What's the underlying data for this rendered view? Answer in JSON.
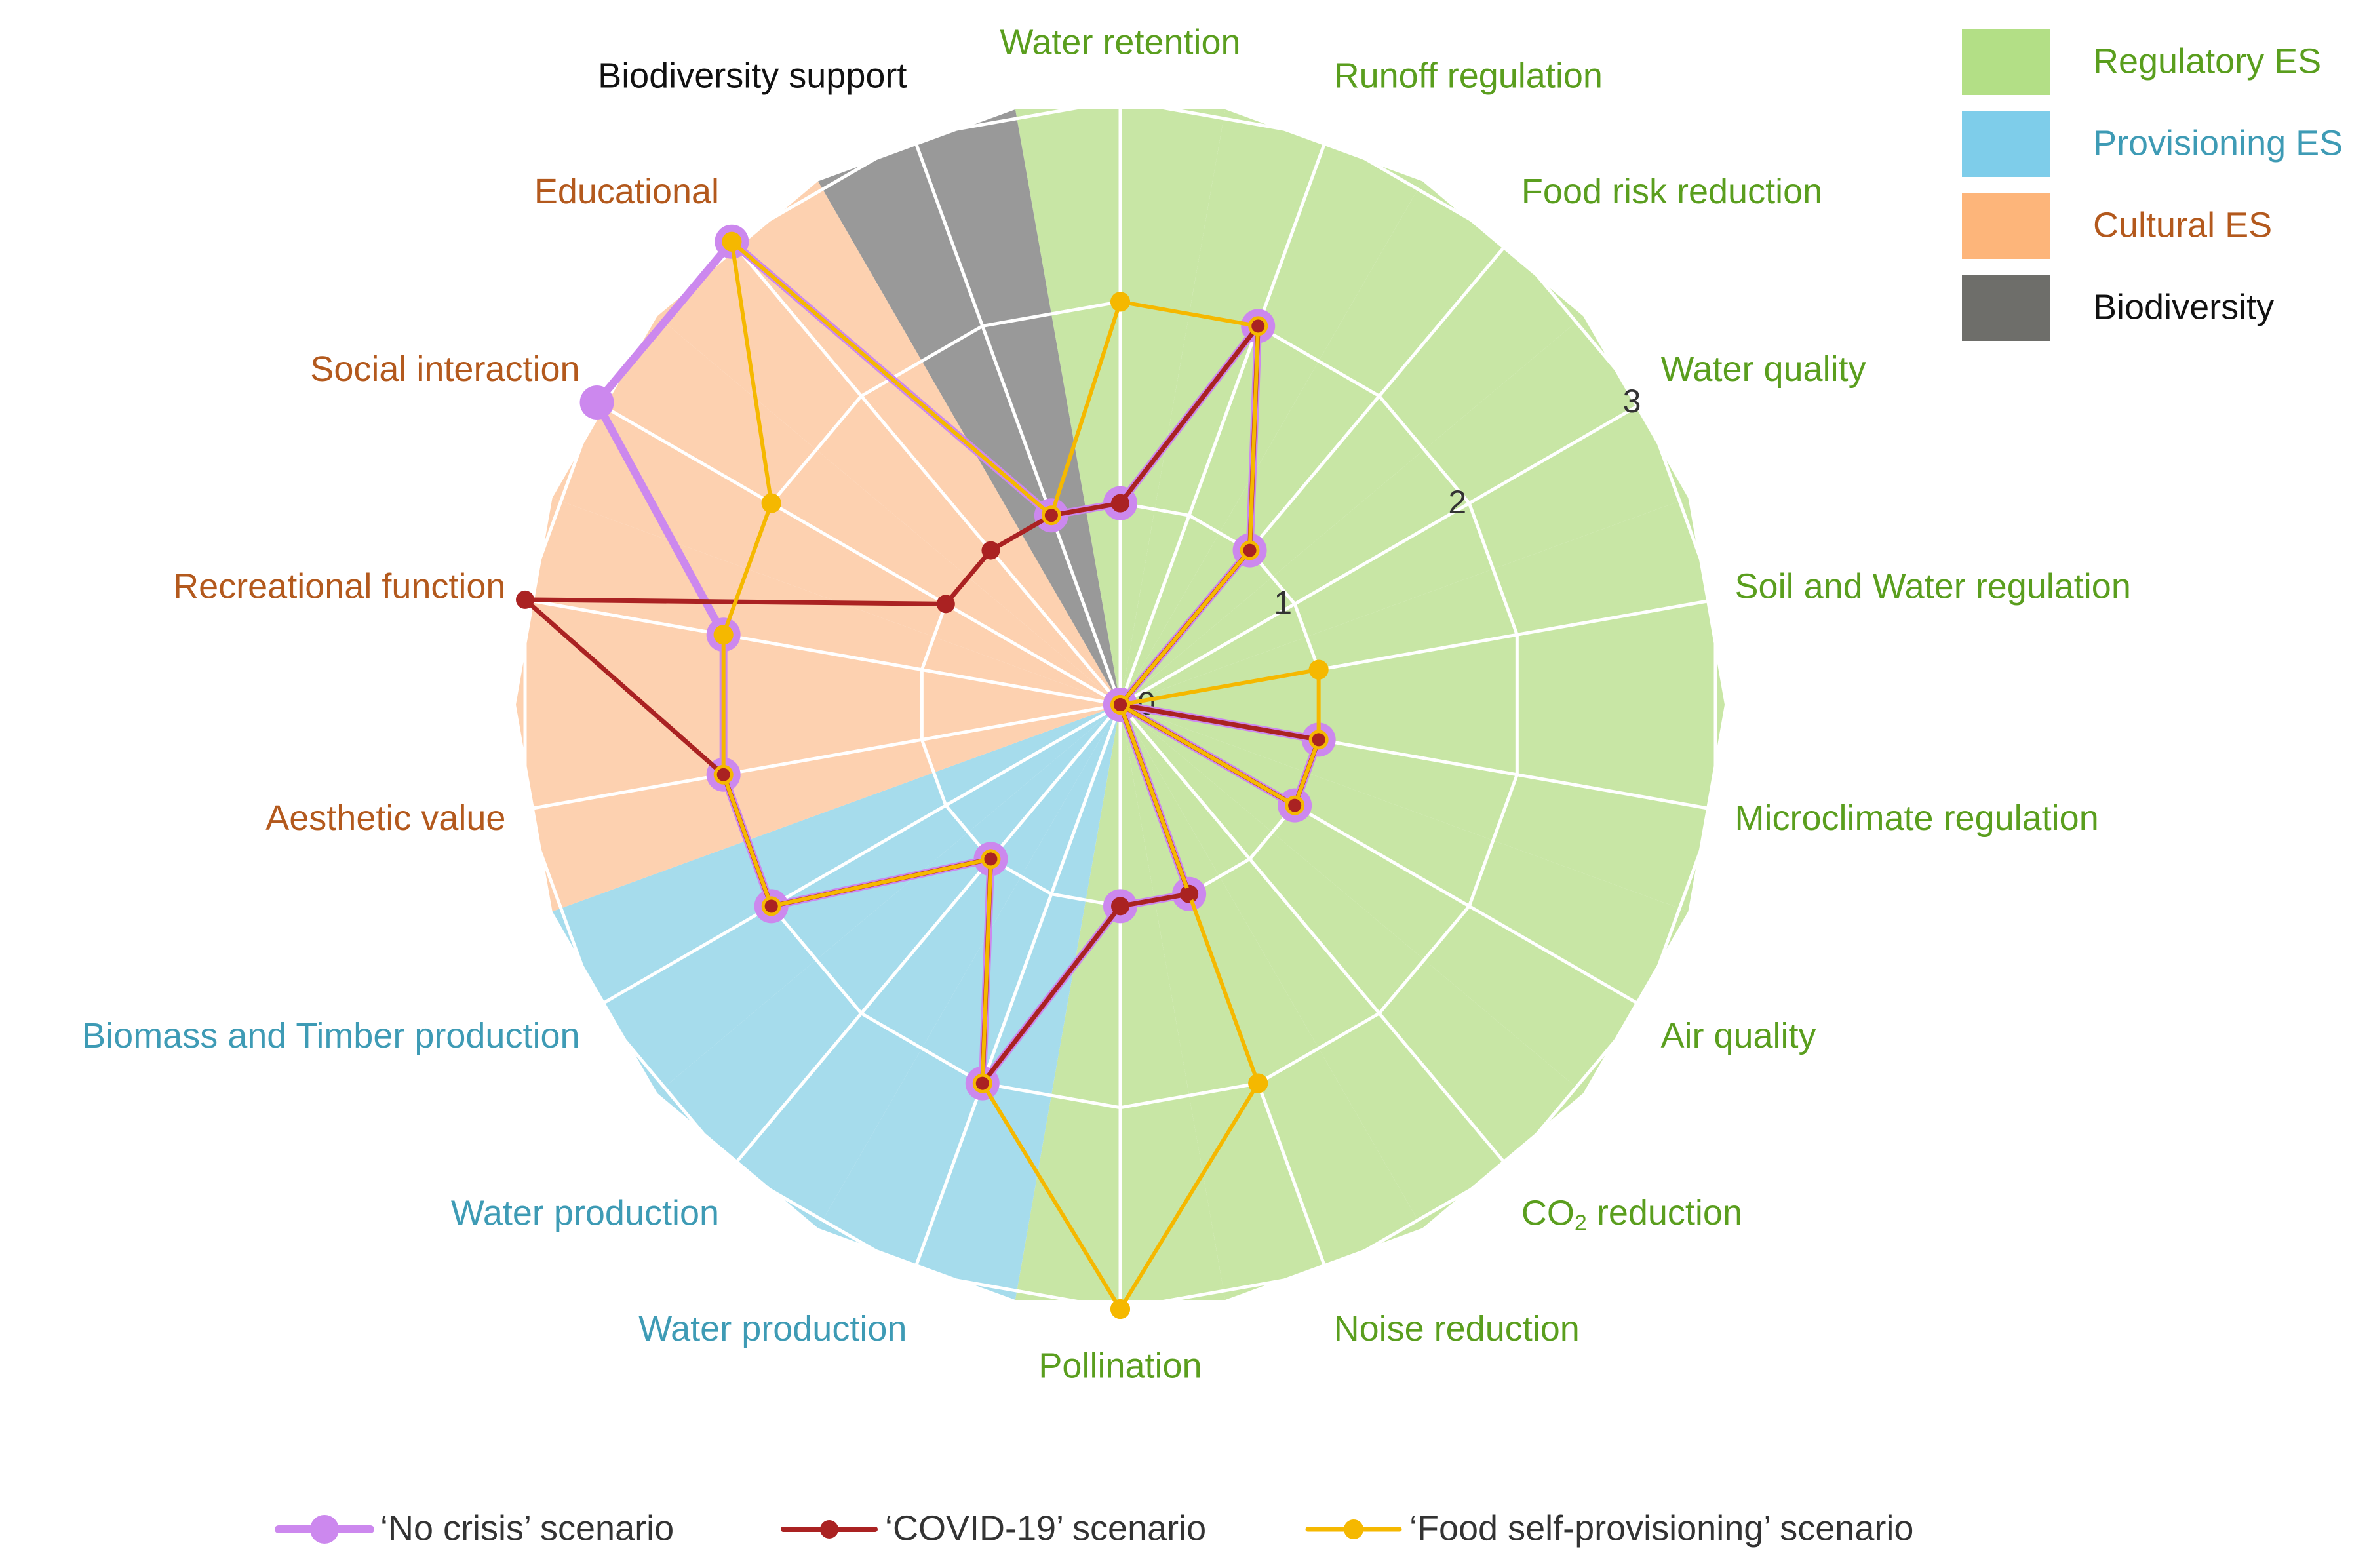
{
  "chart_data": {
    "type": "radar",
    "title": "",
    "axis_range": [
      0,
      3
    ],
    "ticks": [
      "0",
      "1",
      "2",
      "3"
    ],
    "grid": true,
    "categories": [
      {
        "label": "Water retention",
        "group": "regulatory"
      },
      {
        "label": "Runoff regulation",
        "group": "regulatory"
      },
      {
        "label": "Food risk reduction",
        "group": "regulatory"
      },
      {
        "label": "Water quality",
        "group": "regulatory"
      },
      {
        "label": "Soil and Water regulation",
        "group": "regulatory"
      },
      {
        "label": "Microclimate regulation",
        "group": "regulatory"
      },
      {
        "label": "Air quality",
        "group": "regulatory"
      },
      {
        "label": "CO",
        "label_sub": "2",
        "label_suffix": " reduction",
        "group": "regulatory"
      },
      {
        "label": "Noise reduction",
        "group": "regulatory"
      },
      {
        "label": "Pollination",
        "group": "regulatory"
      },
      {
        "label": "Water production",
        "group": "provisioning"
      },
      {
        "label": "Water production",
        "group": "provisioning"
      },
      {
        "label": "Biomass and Timber production",
        "group": "provisioning"
      },
      {
        "label": "Aesthetic value",
        "group": "cultural"
      },
      {
        "label": "Recreational function",
        "group": "cultural"
      },
      {
        "label": "Social interaction",
        "group": "cultural"
      },
      {
        "label": "Educational",
        "group": "cultural"
      },
      {
        "label": "Biodiversity support",
        "group": "biodiversity"
      }
    ],
    "series": [
      {
        "name": "‘No crisis’ scenario",
        "color": "#cc88ee",
        "values": [
          1,
          2,
          1,
          0,
          0,
          1,
          1,
          0,
          1,
          1,
          2,
          1,
          2,
          2,
          2,
          3,
          3,
          1
        ]
      },
      {
        "name": "‘COVID-19’ scenario",
        "color": "#aa2222",
        "values": [
          1,
          2,
          1,
          0,
          0,
          1,
          1,
          0,
          1,
          1,
          2,
          1,
          2,
          2,
          3,
          1,
          1,
          1
        ]
      },
      {
        "name": "‘Food self-provisioning’ scenario",
        "color": "#f5b800",
        "values": [
          2,
          2,
          1,
          0,
          1,
          1,
          1,
          0,
          2,
          3,
          2,
          1,
          2,
          2,
          2,
          2,
          3,
          1
        ]
      }
    ],
    "groups": {
      "regulatory": {
        "label": "Regulatory ES",
        "fill": "#c8e6a5",
        "legend_fill": "#b3df86",
        "text": "#5a9e1e"
      },
      "provisioning": {
        "label": "Provisioning ES",
        "fill": "#a6dcec",
        "legend_fill": "#7ecdea",
        "text": "#3e9bb5"
      },
      "cultural": {
        "label": "Cultural ES",
        "fill": "#fdd1b0",
        "legend_fill": "#fdb57a",
        "text": "#b3591d"
      },
      "biodiversity": {
        "label": "Biodiversity",
        "fill": "#999999",
        "legend_fill": "#6e6e6a",
        "text": "#111111"
      }
    },
    "legend_order": [
      "regulatory",
      "provisioning",
      "cultural",
      "biodiversity"
    ],
    "legend_position": "top-right",
    "series_legend_position": "bottom"
  }
}
